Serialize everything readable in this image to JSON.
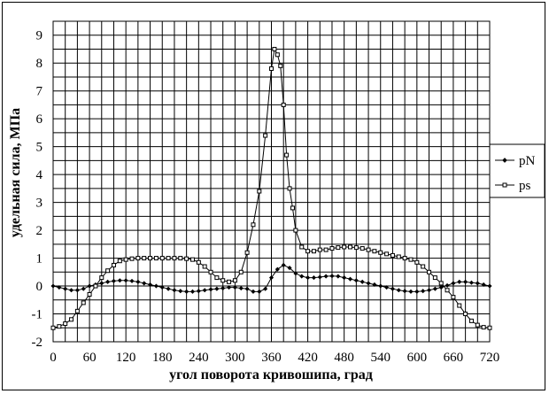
{
  "chart_data": {
    "type": "line",
    "xlabel": "угол поворота кривошипа, град",
    "ylabel": "удельная сила, МПа",
    "xlim": [
      0,
      720
    ],
    "ylim": [
      -2,
      9.5
    ],
    "x_ticks": [
      "0",
      "60",
      "120",
      "180",
      "240",
      "300",
      "360",
      "420",
      "480",
      "540",
      "600",
      "660",
      "720"
    ],
    "y_ticks": [
      "-2",
      "-1",
      "0",
      "1",
      "2",
      "3",
      "4",
      "5",
      "6",
      "7",
      "8",
      "9"
    ],
    "grid": true,
    "legend_position": "right",
    "series": [
      {
        "name": "pN",
        "marker": "diamond",
        "x": [
          0,
          10,
          20,
          30,
          40,
          50,
          60,
          70,
          80,
          90,
          100,
          110,
          120,
          130,
          140,
          150,
          160,
          170,
          180,
          190,
          200,
          210,
          220,
          230,
          240,
          250,
          260,
          270,
          280,
          290,
          300,
          310,
          320,
          330,
          340,
          350,
          360,
          370,
          380,
          390,
          400,
          410,
          420,
          430,
          440,
          450,
          460,
          470,
          480,
          490,
          500,
          510,
          520,
          530,
          540,
          550,
          560,
          570,
          580,
          590,
          600,
          610,
          620,
          630,
          640,
          650,
          660,
          670,
          680,
          690,
          700,
          710,
          720
        ],
        "y": [
          0,
          -0.05,
          -0.1,
          -0.15,
          -0.15,
          -0.1,
          0,
          0.05,
          0.1,
          0.15,
          0.18,
          0.2,
          0.2,
          0.18,
          0.15,
          0.1,
          0.05,
          0,
          -0.05,
          -0.1,
          -0.15,
          -0.18,
          -0.2,
          -0.2,
          -0.18,
          -0.15,
          -0.12,
          -0.1,
          -0.08,
          -0.05,
          -0.05,
          -0.08,
          -0.1,
          -0.2,
          -0.2,
          -0.1,
          0.3,
          0.6,
          0.75,
          0.65,
          0.45,
          0.35,
          0.3,
          0.3,
          0.32,
          0.35,
          0.36,
          0.35,
          0.3,
          0.25,
          0.2,
          0.15,
          0.1,
          0.05,
          0,
          -0.05,
          -0.1,
          -0.15,
          -0.18,
          -0.2,
          -0.2,
          -0.18,
          -0.15,
          -0.1,
          -0.05,
          0.02,
          0.1,
          0.15,
          0.15,
          0.12,
          0.1,
          0.05,
          0
        ]
      },
      {
        "name": "ps",
        "marker": "square",
        "x": [
          0,
          10,
          20,
          30,
          40,
          50,
          60,
          70,
          80,
          90,
          100,
          110,
          120,
          130,
          140,
          150,
          160,
          170,
          180,
          190,
          200,
          210,
          220,
          230,
          240,
          250,
          260,
          270,
          280,
          290,
          300,
          310,
          320,
          330,
          340,
          350,
          360,
          365,
          370,
          375,
          380,
          385,
          390,
          395,
          400,
          410,
          420,
          430,
          440,
          450,
          460,
          470,
          480,
          490,
          500,
          510,
          520,
          530,
          540,
          550,
          560,
          570,
          580,
          590,
          600,
          610,
          620,
          630,
          640,
          650,
          660,
          670,
          680,
          690,
          700,
          710,
          720
        ],
        "y": [
          -1.5,
          -1.45,
          -1.35,
          -1.2,
          -0.9,
          -0.6,
          -0.3,
          0,
          0.3,
          0.55,
          0.75,
          0.9,
          0.95,
          0.98,
          1,
          1,
          1,
          1,
          1,
          1,
          1,
          1,
          0.98,
          0.95,
          0.85,
          0.7,
          0.5,
          0.3,
          0.2,
          0.15,
          0.2,
          0.5,
          1.2,
          2.2,
          3.4,
          5.4,
          7.8,
          8.5,
          8.3,
          7.9,
          6.5,
          4.7,
          3.5,
          2.8,
          2.0,
          1.4,
          1.25,
          1.25,
          1.3,
          1.3,
          1.35,
          1.38,
          1.4,
          1.4,
          1.38,
          1.35,
          1.3,
          1.25,
          1.2,
          1.15,
          1.1,
          1.05,
          1,
          0.95,
          0.85,
          0.7,
          0.5,
          0.3,
          0.1,
          -0.15,
          -0.4,
          -0.7,
          -1.0,
          -1.25,
          -1.4,
          -1.48,
          -1.5
        ]
      }
    ]
  }
}
